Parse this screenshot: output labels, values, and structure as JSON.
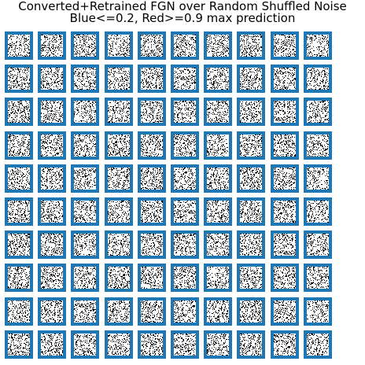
{
  "title_line1": "Converted+Retrained FGN over Random Shuffled Noise",
  "title_line2": "Blue<=0.2, Red>=0.9 max prediction",
  "grid": {
    "rows": 10,
    "cols": 10
  },
  "colors": {
    "tile_frame": "#1f77b4",
    "ink": "#000000",
    "paper": "#ffffff"
  },
  "noise_density": 0.22
}
